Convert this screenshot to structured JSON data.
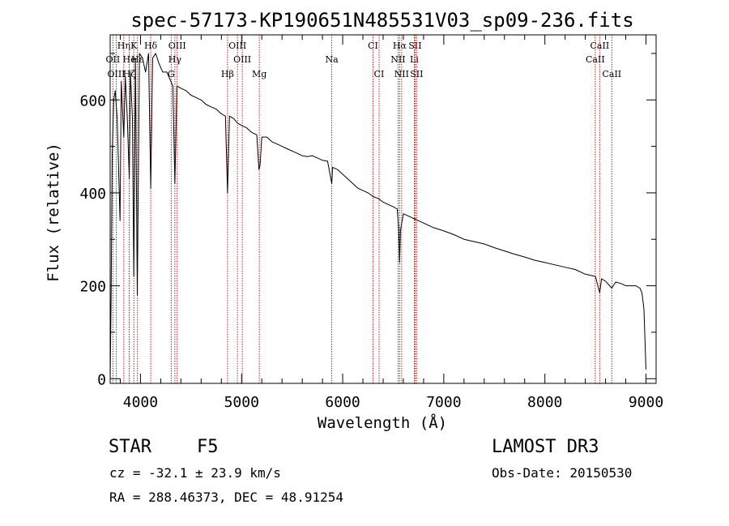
{
  "chart_data": {
    "type": "line",
    "title": "spec-57173-KP190651N485531V03_sp09-236.fits",
    "xlabel": "Wavelength (Å)",
    "ylabel": "Flux (relative)",
    "xlim": [
      3700,
      9100
    ],
    "ylim": [
      -10,
      740
    ],
    "xticks": [
      4000,
      5000,
      6000,
      7000,
      8000,
      9000
    ],
    "yticks": [
      0,
      200,
      400,
      600
    ],
    "series": [
      {
        "name": "flux",
        "x": [
          3700,
          3710,
          3720,
          3735,
          3750,
          3770,
          3798,
          3810,
          3835,
          3850,
          3870,
          3889,
          3900,
          3920,
          3934,
          3950,
          3968,
          3990,
          4020,
          4050,
          4080,
          4101,
          4120,
          4150,
          4180,
          4220,
          4260,
          4300,
          4320,
          4340,
          4360,
          4400,
          4450,
          4500,
          4550,
          4600,
          4650,
          4700,
          4750,
          4800,
          4840,
          4861,
          4880,
          4920,
          4960,
          5000,
          5050,
          5100,
          5150,
          5172,
          5183,
          5200,
          5250,
          5300,
          5350,
          5400,
          5450,
          5500,
          5550,
          5600,
          5650,
          5700,
          5750,
          5800,
          5850,
          5892,
          5900,
          5950,
          6000,
          6050,
          6100,
          6150,
          6200,
          6250,
          6300,
          6350,
          6400,
          6450,
          6500,
          6540,
          6555,
          6563,
          6572,
          6600,
          6650,
          6700,
          6750,
          6800,
          6900,
          7000,
          7100,
          7200,
          7300,
          7400,
          7500,
          7600,
          7700,
          7800,
          7900,
          8000,
          8100,
          8200,
          8300,
          8400,
          8500,
          8542,
          8560,
          8600,
          8662,
          8700,
          8750,
          8800,
          8850,
          8900,
          8940,
          8960,
          8980,
          8990,
          9000
        ],
        "values": [
          0,
          180,
          480,
          600,
          620,
          560,
          340,
          640,
          520,
          650,
          560,
          430,
          660,
          560,
          220,
          690,
          180,
          700,
          690,
          660,
          700,
          410,
          690,
          700,
          680,
          660,
          660,
          640,
          630,
          420,
          630,
          625,
          620,
          610,
          605,
          600,
          590,
          585,
          580,
          570,
          565,
          400,
          565,
          560,
          550,
          545,
          540,
          530,
          525,
          450,
          460,
          520,
          520,
          510,
          505,
          500,
          495,
          490,
          485,
          480,
          478,
          480,
          475,
          470,
          468,
          420,
          455,
          450,
          440,
          430,
          420,
          410,
          405,
          400,
          392,
          388,
          380,
          375,
          370,
          365,
          320,
          250,
          320,
          355,
          350,
          345,
          340,
          335,
          325,
          318,
          310,
          300,
          295,
          290,
          282,
          275,
          268,
          262,
          255,
          250,
          245,
          240,
          235,
          225,
          220,
          185,
          215,
          210,
          195,
          208,
          205,
          200,
          200,
          200,
          195,
          185,
          150,
          80,
          20
        ]
      }
    ],
    "spectral_lines": [
      {
        "label": "Hη",
        "wave": 3835,
        "row": 0
      },
      {
        "label": "K",
        "wave": 3934,
        "row": 0
      },
      {
        "label": "Hδ",
        "wave": 4101,
        "row": 0
      },
      {
        "label": "OIII",
        "wave": 4363,
        "row": 0
      },
      {
        "label": "OIII",
        "wave": 4959,
        "row": 0
      },
      {
        "label": "CI",
        "wave": 6300,
        "row": 0
      },
      {
        "label": "Hα",
        "wave": 6563,
        "row": 0
      },
      {
        "label": "SII",
        "wave": 6716,
        "row": 0
      },
      {
        "label": "CaII",
        "wave": 8542,
        "row": 0
      },
      {
        "label": "OII",
        "wave": 3727,
        "row": 1
      },
      {
        "label": "He",
        "wave": 3889,
        "row": 1
      },
      {
        "label": "Hε",
        "wave": 3970,
        "row": 1
      },
      {
        "label": "Hγ",
        "wave": 4340,
        "row": 1
      },
      {
        "label": "OIII",
        "wave": 5007,
        "row": 1
      },
      {
        "label": "Na",
        "wave": 5892,
        "row": 1
      },
      {
        "label": "NII",
        "wave": 6548,
        "row": 1
      },
      {
        "label": "Li",
        "wave": 6708,
        "row": 1
      },
      {
        "label": "CaII",
        "wave": 8498,
        "row": 1
      },
      {
        "label": "OIII",
        "wave": 3760,
        "row": 2
      },
      {
        "label": "Hζ",
        "wave": 3889,
        "row": 2
      },
      {
        "label": "G",
        "wave": 4304,
        "row": 2
      },
      {
        "label": "Hβ",
        "wave": 4861,
        "row": 2
      },
      {
        "label": "Mg",
        "wave": 5175,
        "row": 2
      },
      {
        "label": "CI",
        "wave": 6360,
        "row": 2
      },
      {
        "label": "NII",
        "wave": 6583,
        "row": 2
      },
      {
        "label": "SII",
        "wave": 6731,
        "row": 2
      },
      {
        "label": "CaII",
        "wave": 8662,
        "row": 2
      }
    ]
  },
  "info": {
    "class": "STAR",
    "subclass": "F5",
    "survey": "LAMOST DR3",
    "cz": "cz = -32.1 ± 23.9 km/s",
    "obs_date": "Obs-Date: 20150530",
    "coords": "RA = 288.46373, DEC =  48.91254"
  },
  "colors": {
    "line_marker": "#cc0000",
    "spectrum": "#000000"
  }
}
